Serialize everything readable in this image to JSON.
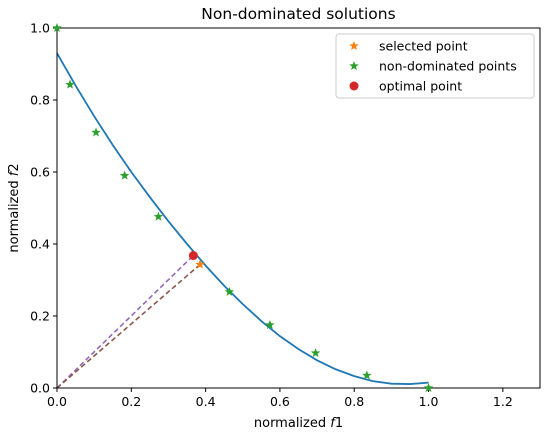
{
  "chart_data": {
    "type": "scatter",
    "title": "Non-dominated solutions",
    "xlabel": {
      "prefix": "normalized ",
      "var": "f",
      "sub": "1"
    },
    "ylabel": {
      "prefix": "normalized ",
      "var": "f",
      "sub": "2"
    },
    "xlim": [
      0.0,
      1.3
    ],
    "ylim": [
      0.0,
      1.0
    ],
    "xticks": [
      "0.0",
      "0.2",
      "0.4",
      "0.6",
      "0.8",
      "1.0",
      "1.2"
    ],
    "xtick_values": [
      0.0,
      0.2,
      0.4,
      0.6,
      0.8,
      1.0,
      1.2
    ],
    "yticks": [
      "0.0",
      "0.2",
      "0.4",
      "0.6",
      "0.8",
      "1.0"
    ],
    "ytick_values": [
      0.0,
      0.2,
      0.4,
      0.6,
      0.8,
      1.0
    ],
    "grid": false,
    "legend_position": "top-right",
    "series": [
      {
        "name": "selected point",
        "marker": "star",
        "color": "#ff7f0e",
        "points": [
          [
            0.385,
            0.343
          ]
        ]
      },
      {
        "name": "non-dominated points",
        "marker": "star",
        "color": "#2ca02c",
        "points": [
          [
            0.0,
            1.0
          ],
          [
            0.035,
            0.843
          ],
          [
            0.105,
            0.71
          ],
          [
            0.182,
            0.59
          ],
          [
            0.273,
            0.476
          ],
          [
            0.464,
            0.267
          ],
          [
            0.573,
            0.175
          ],
          [
            0.696,
            0.097
          ],
          [
            0.834,
            0.035
          ],
          [
            1.0,
            0.0
          ]
        ]
      },
      {
        "name": "optimal point",
        "marker": "circle",
        "color": "#d62728",
        "points": [
          [
            0.367,
            0.368
          ]
        ]
      }
    ],
    "fitted_curve": {
      "color": "#1f77b4",
      "points": [
        [
          0.0,
          0.93
        ],
        [
          0.05,
          0.84
        ],
        [
          0.1,
          0.755
        ],
        [
          0.15,
          0.675
        ],
        [
          0.2,
          0.6
        ],
        [
          0.25,
          0.53
        ],
        [
          0.3,
          0.463
        ],
        [
          0.35,
          0.4
        ],
        [
          0.4,
          0.34
        ],
        [
          0.45,
          0.284
        ],
        [
          0.5,
          0.233
        ],
        [
          0.55,
          0.186
        ],
        [
          0.6,
          0.144
        ],
        [
          0.65,
          0.108
        ],
        [
          0.7,
          0.077
        ],
        [
          0.75,
          0.052
        ],
        [
          0.8,
          0.033
        ],
        [
          0.85,
          0.019
        ],
        [
          0.9,
          0.012
        ],
        [
          0.95,
          0.011
        ],
        [
          1.0,
          0.015
        ]
      ]
    },
    "dashed_lines": [
      {
        "color": "#9467bd",
        "from": [
          0.0,
          0.0
        ],
        "to": [
          0.367,
          0.368
        ]
      },
      {
        "color": "#8c564b",
        "from": [
          0.0,
          0.0
        ],
        "to": [
          0.385,
          0.343
        ]
      }
    ]
  }
}
